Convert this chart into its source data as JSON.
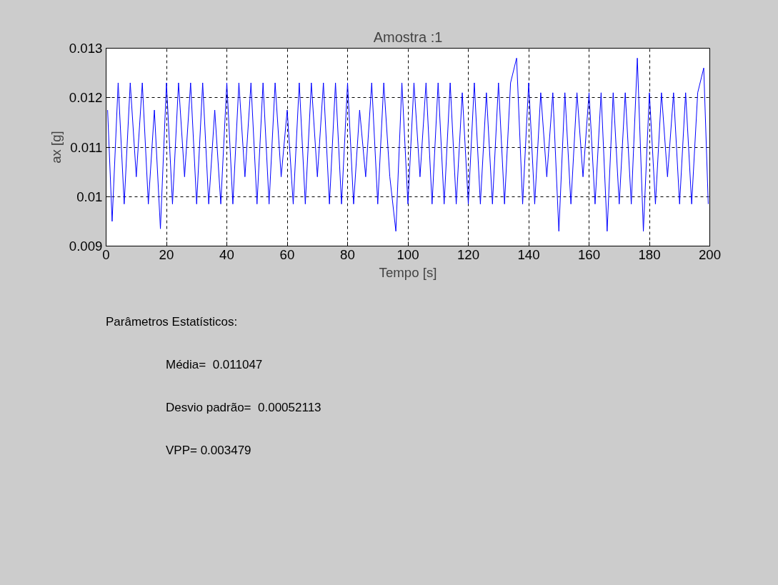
{
  "chart_data": {
    "type": "line",
    "title": "Amostra :1",
    "xlabel": "Tempo [s]",
    "ylabel": "ax [g]",
    "x": [
      0.5,
      2,
      4,
      6,
      8,
      10,
      12,
      14,
      16,
      18,
      20,
      22,
      24,
      26,
      28,
      30,
      32,
      34,
      36,
      38,
      40,
      42,
      44,
      46,
      48,
      50,
      52,
      54,
      56,
      58,
      60,
      62,
      64,
      66,
      68,
      70,
      72,
      74,
      76,
      78,
      80,
      82,
      84,
      86,
      88,
      90,
      92,
      94,
      96,
      98,
      100,
      102,
      104,
      106,
      108,
      110,
      112,
      114,
      116,
      118,
      120,
      122,
      124,
      126,
      128,
      130,
      132,
      134,
      136,
      138,
      140,
      142,
      144,
      146,
      148,
      150,
      152,
      154,
      156,
      158,
      160,
      162,
      164,
      166,
      168,
      170,
      172,
      174,
      176,
      178,
      180,
      182,
      184,
      186,
      188,
      190,
      192,
      194,
      196,
      198,
      199.5
    ],
    "series": [
      {
        "color": "#0000ff",
        "values": [
          0.01175,
          0.0095,
          0.0123,
          0.00985,
          0.0123,
          0.0104,
          0.0123,
          0.00985,
          0.01175,
          0.00935,
          0.0123,
          0.00985,
          0.0123,
          0.0104,
          0.0123,
          0.00985,
          0.0123,
          0.00985,
          0.01175,
          0.00985,
          0.0123,
          0.00985,
          0.0123,
          0.0104,
          0.0123,
          0.00985,
          0.0123,
          0.00985,
          0.0123,
          0.0104,
          0.01175,
          0.00985,
          0.0123,
          0.00985,
          0.0123,
          0.0104,
          0.0123,
          0.00985,
          0.0123,
          0.00985,
          0.0123,
          0.00985,
          0.01175,
          0.0104,
          0.0123,
          0.00985,
          0.0123,
          0.0104,
          0.0093,
          0.0123,
          0.00985,
          0.0123,
          0.0104,
          0.0123,
          0.00985,
          0.0123,
          0.00985,
          0.0123,
          0.00985,
          0.0121,
          0.00985,
          0.0123,
          0.00985,
          0.0121,
          0.00985,
          0.0123,
          0.00985,
          0.0123,
          0.0128,
          0.00985,
          0.0123,
          0.00985,
          0.0121,
          0.0104,
          0.0121,
          0.0093,
          0.0121,
          0.00985,
          0.0121,
          0.0104,
          0.0121,
          0.00985,
          0.0121,
          0.0093,
          0.0121,
          0.00985,
          0.0121,
          0.00985,
          0.0128,
          0.0093,
          0.0121,
          0.00985,
          0.0121,
          0.0104,
          0.0121,
          0.00985,
          0.0121,
          0.00985,
          0.0121,
          0.0126,
          0.00985
        ]
      }
    ],
    "xlim": [
      0,
      200
    ],
    "ylim": [
      0.009,
      0.013
    ],
    "xticks": [
      0,
      20,
      40,
      60,
      80,
      100,
      120,
      140,
      160,
      180,
      200
    ],
    "yticks": [
      0.009,
      0.01,
      0.011,
      0.012,
      0.013
    ],
    "grid": true,
    "marker": "none",
    "line_style": "solid",
    "annotations": [
      "Parâmetros Estatísticos:",
      "Média=  0.011047",
      "Desvio padrão=  0.00052113",
      "VPP= 0.003479"
    ]
  }
}
